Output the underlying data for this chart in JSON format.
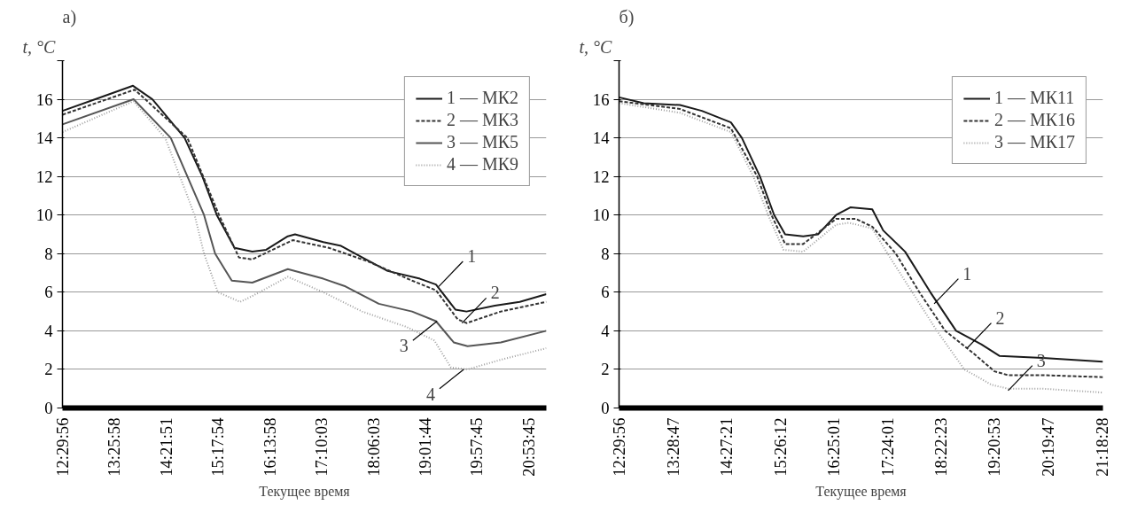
{
  "chart_data": [
    {
      "type": "line",
      "title": "а)",
      "ylabel": "t, °C",
      "xlabel": "Текущее время",
      "xlim": [
        12.4989,
        21.22
      ],
      "ylim": [
        0,
        18
      ],
      "xticks": [
        {
          "value": 12.4989,
          "label": "12:29:56"
        },
        {
          "value": 13.4328,
          "label": "13:25:58"
        },
        {
          "value": 14.3642,
          "label": "14:21:51"
        },
        {
          "value": 15.2983,
          "label": "15:17:54"
        },
        {
          "value": 16.2328,
          "label": "16:13:58"
        },
        {
          "value": 17.1675,
          "label": "17:10:03"
        },
        {
          "value": 18.1008,
          "label": "18:06:03"
        },
        {
          "value": 19.0289,
          "label": "19:01:44"
        },
        {
          "value": 19.9625,
          "label": "19:57:45"
        },
        {
          "value": 20.8958,
          "label": "20:53:45"
        }
      ],
      "yticks": [
        0,
        2,
        4,
        6,
        8,
        10,
        12,
        14,
        16,
        {
          "value": 18,
          "label": null
        }
      ],
      "grid": "y",
      "legend": "top right",
      "marker": "none",
      "series": [
        {
          "name": "1 — МК2",
          "color": "#1a1a1a",
          "line_style": "solid",
          "x": [
            12.5,
            13.09,
            13.77,
            14.12,
            14.7,
            15.02,
            15.28,
            15.6,
            15.92,
            16.17,
            16.56,
            16.69,
            17.2,
            17.52,
            17.97,
            18.36,
            18.94,
            19.23,
            19.58,
            19.78,
            20.29,
            20.74,
            21.22
          ],
          "values": [
            15.4,
            16.0,
            16.7,
            16.0,
            14.0,
            12.0,
            10.0,
            8.3,
            8.1,
            8.2,
            8.9,
            9.0,
            8.6,
            8.4,
            7.7,
            7.1,
            6.7,
            6.4,
            5.1,
            5.0,
            5.3,
            5.5,
            5.9
          ]
        },
        {
          "name": "2 — МК3",
          "color": "#333333",
          "line_style": "dashed",
          "x": [
            12.5,
            13.8,
            14.75,
            15.32,
            15.68,
            15.92,
            16.65,
            17.3,
            18.0,
            18.8,
            19.23,
            19.62,
            19.78,
            20.4,
            21.22
          ],
          "values": [
            15.2,
            16.5,
            14.0,
            10.0,
            7.8,
            7.7,
            8.7,
            8.3,
            7.6,
            6.6,
            6.1,
            4.6,
            4.4,
            5.0,
            5.5
          ]
        },
        {
          "name": "3 — МК5",
          "color": "#555555",
          "line_style": "solid",
          "x": [
            12.5,
            13.78,
            14.45,
            14.75,
            15.05,
            15.25,
            15.55,
            15.92,
            16.56,
            17.2,
            17.6,
            18.2,
            18.8,
            19.23,
            19.55,
            19.8,
            20.4,
            21.22
          ],
          "values": [
            14.7,
            16.0,
            14.0,
            12.0,
            10.0,
            8.0,
            6.6,
            6.5,
            7.2,
            6.7,
            6.3,
            5.4,
            5.0,
            4.5,
            3.4,
            3.2,
            3.4,
            4.0
          ]
        },
        {
          "name": "4 — МК9",
          "color": "#a0a0a0",
          "line_style": "dotted",
          "x": [
            12.5,
            13.78,
            14.35,
            14.88,
            15.05,
            15.3,
            15.7,
            15.92,
            16.56,
            17.2,
            17.9,
            18.7,
            19.2,
            19.5,
            19.8,
            20.4,
            21.22
          ],
          "values": [
            14.3,
            15.9,
            14.0,
            10.0,
            8.0,
            6.0,
            5.5,
            5.8,
            6.8,
            6.0,
            5.0,
            4.2,
            3.5,
            2.1,
            2.0,
            2.5,
            3.1
          ]
        }
      ],
      "annotations": [
        {
          "text": "1",
          "x": 19.28,
          "y": 6.3
        },
        {
          "text": "2",
          "x": 19.7,
          "y": 4.4
        },
        {
          "text": "3",
          "x": 19.25,
          "y": 4.5
        },
        {
          "text": "4",
          "x": 19.73,
          "y": 2.0
        }
      ]
    },
    {
      "type": "line",
      "title": "б)",
      "ylabel": "t, °C",
      "xlabel": "Текущее время",
      "xlim": [
        12.4989,
        21.33
      ],
      "ylim": [
        0,
        18
      ],
      "xticks": [
        {
          "value": 12.4989,
          "label": "12:29:56"
        },
        {
          "value": 13.4797,
          "label": "13:28:47"
        },
        {
          "value": 14.4558,
          "label": "14:27:21"
        },
        {
          "value": 15.4367,
          "label": "15:26:12"
        },
        {
          "value": 16.4169,
          "label": "16:25:01"
        },
        {
          "value": 17.4003,
          "label": "17:24:01"
        },
        {
          "value": 18.3731,
          "label": "18:22:23"
        },
        {
          "value": 19.3481,
          "label": "19:20:53"
        },
        {
          "value": 20.3297,
          "label": "20:19:47"
        },
        {
          "value": 21.3078,
          "label": "21:18:28"
        }
      ],
      "yticks": [
        0,
        2,
        4,
        6,
        8,
        10,
        12,
        14,
        16,
        {
          "value": 18,
          "label": null
        }
      ],
      "grid": "y",
      "legend": "top right",
      "marker": "none",
      "series": [
        {
          "name": "1 — МК11",
          "color": "#1a1a1a",
          "line_style": "solid",
          "x": [
            12.5,
            12.95,
            13.61,
            14.01,
            14.54,
            14.74,
            15.07,
            15.33,
            15.53,
            15.86,
            16.13,
            16.46,
            16.72,
            17.12,
            17.32,
            17.72,
            18.18,
            18.65,
            19.11,
            19.44,
            20.23,
            21.33
          ],
          "values": [
            16.1,
            15.8,
            15.7,
            15.4,
            14.8,
            14.0,
            12.0,
            10.0,
            9.0,
            8.9,
            9.0,
            10.0,
            10.4,
            10.3,
            9.2,
            8.1,
            6.0,
            4.0,
            3.3,
            2.7,
            2.6,
            2.4
          ]
        },
        {
          "name": "2 — МК16",
          "color": "#333333",
          "line_style": "dashed",
          "x": [
            12.5,
            13.61,
            14.54,
            15.02,
            15.28,
            15.53,
            15.86,
            16.46,
            16.82,
            17.12,
            17.55,
            17.98,
            18.45,
            18.98,
            19.35,
            19.6,
            20.23,
            21.33
          ],
          "values": [
            15.9,
            15.5,
            14.5,
            12.0,
            10.0,
            8.5,
            8.5,
            9.8,
            9.8,
            9.4,
            8.0,
            6.0,
            4.0,
            2.8,
            1.9,
            1.7,
            1.7,
            1.6
          ]
        },
        {
          "name": "3 — МК17",
          "color": "#a0a0a0",
          "line_style": "dotted",
          "x": [
            12.5,
            13.61,
            14.54,
            14.95,
            15.22,
            15.5,
            15.86,
            16.46,
            16.7,
            17.12,
            17.4,
            17.85,
            18.3,
            18.8,
            19.3,
            19.6,
            20.23,
            21.33
          ],
          "values": [
            15.8,
            15.3,
            14.3,
            12.0,
            10.0,
            8.2,
            8.1,
            9.5,
            9.6,
            9.3,
            8.0,
            6.0,
            4.0,
            2.0,
            1.2,
            1.0,
            1.0,
            0.8
          ]
        }
      ],
      "annotations": [
        {
          "text": "1",
          "x": 18.25,
          "y": 5.4
        },
        {
          "text": "2",
          "x": 18.85,
          "y": 3.1
        },
        {
          "text": "3",
          "x": 19.6,
          "y": 0.9
        }
      ]
    }
  ]
}
